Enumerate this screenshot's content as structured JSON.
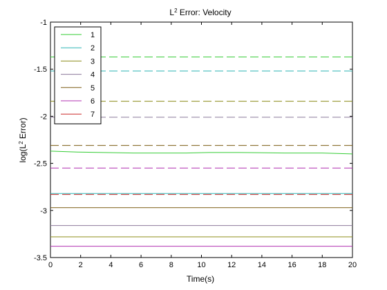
{
  "chart_data": {
    "type": "line",
    "title_main": "L",
    "title_sup": "2",
    "title_rest": " Error: Velocity",
    "xlabel": "Time(s)",
    "ylabel_main": "log(L",
    "ylabel_sup": "2",
    "ylabel_rest": " Error)",
    "xlim": [
      0,
      20
    ],
    "ylim": [
      -3.5,
      -1
    ],
    "xticks": [
      0,
      2,
      4,
      6,
      8,
      10,
      12,
      14,
      16,
      18,
      20
    ],
    "yticks": [
      -1,
      -1.5,
      -2,
      -2.5,
      -3,
      -3.5
    ],
    "grid": false,
    "legend_position": "top-left",
    "series": [
      {
        "name": "1",
        "color": "#33cc33",
        "solid": {
          "x": [
            0,
            1.8,
            3.5,
            5.5,
            7,
            9,
            10.5,
            12.5,
            15.5,
            18,
            20
          ],
          "y": [
            -2.37,
            -2.38,
            -2.385,
            -2.39,
            -2.39,
            -2.39,
            -2.385,
            -2.385,
            -2.39,
            -2.39,
            -2.4
          ]
        },
        "dashed": {
          "x": [
            0,
            20
          ],
          "y": [
            -1.37,
            -1.37
          ]
        }
      },
      {
        "name": "2",
        "color": "#2ab3b3",
        "solid": {
          "x": [
            0,
            20
          ],
          "y": [
            -2.82,
            -2.82
          ]
        },
        "dashed": {
          "x": [
            0,
            20
          ],
          "y": [
            -1.52,
            -1.52
          ]
        }
      },
      {
        "name": "3",
        "color": "#8c8c1a",
        "solid": {
          "x": [
            0,
            20
          ],
          "y": [
            -3.28,
            -3.28
          ]
        },
        "dashed": {
          "x": [
            0,
            20
          ],
          "y": [
            -1.84,
            -1.84
          ]
        }
      },
      {
        "name": "4",
        "color": "#8c7a9c",
        "solid": {
          "x": [
            0,
            20
          ],
          "y": [
            -3.16,
            -3.16
          ]
        },
        "dashed": {
          "x": [
            0,
            20
          ],
          "y": [
            -2.01,
            -2.01
          ]
        }
      },
      {
        "name": "5",
        "color": "#7a5a10",
        "solid": {
          "x": [
            0,
            20
          ],
          "y": [
            -2.97,
            -2.97
          ]
        },
        "dashed": {
          "x": [
            0,
            20
          ],
          "y": [
            -2.31,
            -2.31
          ]
        }
      },
      {
        "name": "6",
        "color": "#b030b0",
        "solid": {
          "x": [
            0,
            20
          ],
          "y": [
            -3.38,
            -3.38
          ]
        },
        "dashed": {
          "x": [
            0,
            20
          ],
          "y": [
            -2.55,
            -2.55
          ]
        }
      },
      {
        "name": "7",
        "color": "#cc2a2a",
        "solid": null,
        "dashed": {
          "x": [
            0,
            20
          ],
          "y": [
            -2.83,
            -2.83
          ]
        }
      }
    ]
  }
}
